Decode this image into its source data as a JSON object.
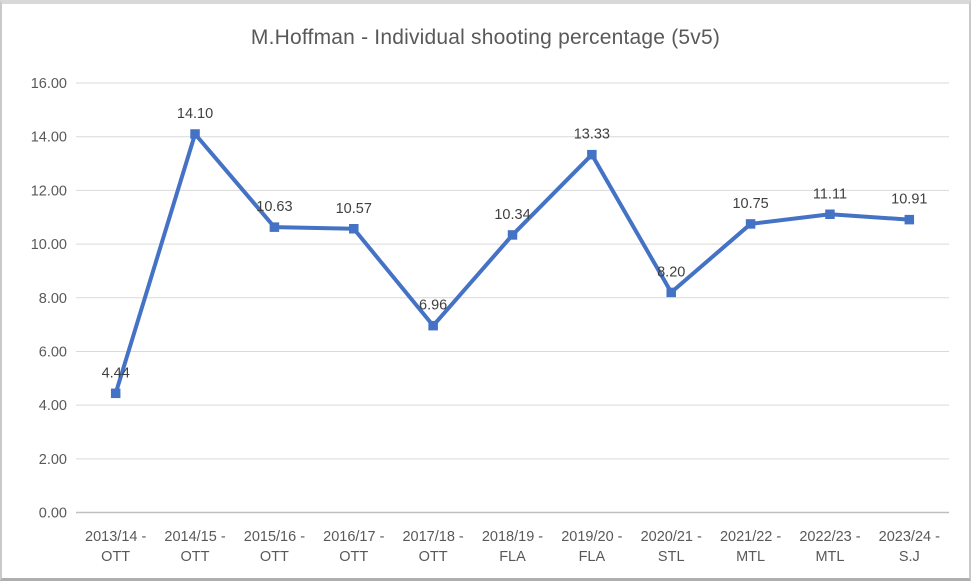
{
  "chart_data": {
    "type": "line",
    "title": "M.Hoffman - Individual shooting percentage (5v5)",
    "categories": [
      "2013/14 - OTT",
      "2014/15 - OTT",
      "2015/16 - OTT",
      "2016/17 - OTT",
      "2017/18 - OTT",
      "2018/19 - FLA",
      "2019/20 - FLA",
      "2020/21 - STL",
      "2021/22 - MTL",
      "2022/23 - MTL",
      "2023/24 - S.J"
    ],
    "values": [
      4.44,
      14.1,
      10.63,
      10.57,
      6.96,
      10.34,
      13.33,
      8.2,
      10.75,
      11.11,
      10.91
    ],
    "data_labels": [
      "4.44",
      "14.10",
      "10.63",
      "10.57",
      "6.96",
      "10.34",
      "13.33",
      "8.20",
      "10.75",
      "11.11",
      "10.91"
    ],
    "xlabel": "",
    "ylabel": "",
    "ylim": [
      0,
      16
    ],
    "y_tick_step": 2,
    "y_tick_labels": [
      "0.00",
      "2.00",
      "4.00",
      "6.00",
      "8.00",
      "10.00",
      "12.00",
      "14.00",
      "16.00"
    ],
    "grid": true,
    "legend_position": "none",
    "marker_shape": "square",
    "colors": {
      "line": "#4472C4",
      "marker": "#4472C4",
      "gridline": "#d9d9d9",
      "axis_line": "#bfbfbf",
      "tick_text": "#595959",
      "data_label_text": "#404040",
      "title_text": "#595959"
    }
  }
}
